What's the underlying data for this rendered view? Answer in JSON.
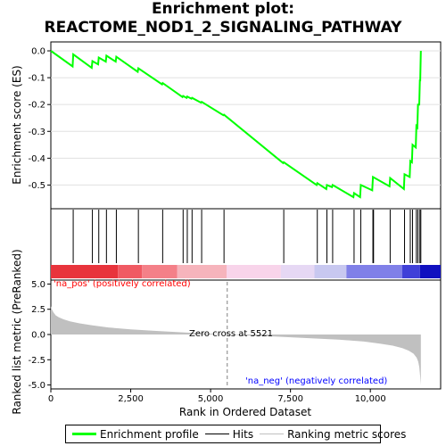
{
  "title_line1": "Enrichment plot:",
  "title_line2": "REACTOME_NOD1_2_SIGNALING_PATHWAY",
  "colors": {
    "es_line": "#00ff00",
    "hits": "#000000",
    "metric_fill": "#c0c0c0",
    "pos_text": "#ff0000",
    "neg_text": "#0000ff",
    "zero_line": "#808080"
  },
  "legend": {
    "es_label": "Enrichment profile",
    "hits_label": "Hits",
    "metric_label": "Ranking metric scores"
  },
  "chart_data": [
    {
      "type": "line",
      "name": "enrichment-profile",
      "ylabel": "Enrichment score (ES)",
      "xlim": [
        0,
        12200
      ],
      "ylim": [
        -0.585,
        0.03
      ],
      "yticks": [
        0.0,
        -0.1,
        -0.2,
        -0.3,
        -0.4,
        -0.5
      ],
      "ytick_labels": [
        "0.0",
        "-0.1",
        "-0.2",
        "-0.3",
        "-0.4",
        "-0.5"
      ],
      "points": [
        [
          0,
          0.0
        ],
        [
          680,
          -0.058
        ],
        [
          700,
          -0.013
        ],
        [
          1280,
          -0.063
        ],
        [
          1300,
          -0.038
        ],
        [
          1480,
          -0.05
        ],
        [
          1500,
          -0.025
        ],
        [
          1720,
          -0.04
        ],
        [
          1740,
          -0.018
        ],
        [
          2030,
          -0.04
        ],
        [
          2050,
          -0.022
        ],
        [
          2720,
          -0.078
        ],
        [
          2740,
          -0.065
        ],
        [
          3480,
          -0.125
        ],
        [
          3500,
          -0.12
        ],
        [
          4120,
          -0.172
        ],
        [
          4140,
          -0.168
        ],
        [
          4250,
          -0.175
        ],
        [
          4270,
          -0.17
        ],
        [
          4400,
          -0.178
        ],
        [
          4420,
          -0.175
        ],
        [
          4700,
          -0.193
        ],
        [
          4720,
          -0.19
        ],
        [
          5400,
          -0.24
        ],
        [
          5420,
          -0.238
        ],
        [
          7270,
          -0.418
        ],
        [
          7290,
          -0.415
        ],
        [
          8320,
          -0.5
        ],
        [
          8340,
          -0.493
        ],
        [
          8620,
          -0.515
        ],
        [
          8640,
          -0.5
        ],
        [
          8800,
          -0.508
        ],
        [
          8820,
          -0.5
        ],
        [
          9470,
          -0.545
        ],
        [
          9490,
          -0.53
        ],
        [
          9680,
          -0.545
        ],
        [
          9700,
          -0.5
        ],
        [
          10060,
          -0.52
        ],
        [
          10080,
          -0.47
        ],
        [
          10600,
          -0.505
        ],
        [
          10620,
          -0.474
        ],
        [
          11050,
          -0.515
        ],
        [
          11070,
          -0.46
        ],
        [
          11230,
          -0.47
        ],
        [
          11250,
          -0.41
        ],
        [
          11300,
          -0.415
        ],
        [
          11320,
          -0.35
        ],
        [
          11420,
          -0.36
        ],
        [
          11440,
          -0.28
        ],
        [
          11470,
          -0.285
        ],
        [
          11490,
          -0.2
        ],
        [
          11530,
          -0.2
        ],
        [
          11550,
          -0.11
        ],
        [
          11560,
          -0.11
        ],
        [
          11580,
          0.0
        ]
      ]
    },
    {
      "type": "hits",
      "name": "hits",
      "x": [
        700,
        1300,
        1500,
        1740,
        2050,
        2740,
        3500,
        4140,
        4270,
        4420,
        4720,
        5420,
        7290,
        8340,
        8640,
        8820,
        9490,
        9700,
        10080,
        10100,
        10620,
        11070,
        11250,
        11320,
        11440,
        11490,
        11550,
        11580
      ],
      "band_colors": [
        "#e8343c",
        "#f05a63",
        "#f48088",
        "#f6b4bc",
        "#f8d4ea",
        "#e6d8f4",
        "#c8c8f0",
        "#8080e8",
        "#4040d8",
        "#1010c0"
      ],
      "band_edges": [
        0,
        2100,
        2850,
        3950,
        5500,
        7200,
        8250,
        9250,
        11000,
        11550
      ]
    },
    {
      "type": "area",
      "name": "ranking-metric",
      "xlabel": "Rank in Ordered Dataset",
      "ylabel": "Ranked list metric (PreRanked)",
      "xlim": [
        0,
        12200
      ],
      "ylim": [
        -5.3,
        5.3
      ],
      "xticks": [
        0,
        2500,
        5000,
        7500,
        10000
      ],
      "xtick_labels": [
        "0",
        "2,500",
        "5,000",
        "7,500",
        "10,000"
      ],
      "yticks": [
        5.0,
        2.5,
        0.0,
        -2.5,
        -5.0
      ],
      "ytick_labels": [
        "5.0",
        "2.5",
        "0.0",
        "-2.5",
        "-5.0"
      ],
      "x": [
        0,
        30,
        80,
        150,
        250,
        400,
        600,
        900,
        1300,
        1800,
        2500,
        3300,
        4200,
        5000,
        5521,
        6000,
        7000,
        8000,
        9000,
        9800,
        10300,
        10700,
        11000,
        11200,
        11350,
        11450,
        11500,
        11530,
        11560,
        11580
      ],
      "values": [
        2.8,
        2.5,
        2.2,
        1.9,
        1.7,
        1.5,
        1.3,
        1.1,
        0.9,
        0.7,
        0.5,
        0.35,
        0.2,
        0.08,
        0.0,
        -0.08,
        -0.2,
        -0.35,
        -0.5,
        -0.7,
        -0.9,
        -1.1,
        -1.35,
        -1.6,
        -1.9,
        -2.3,
        -2.7,
        -3.2,
        -4.2,
        -5.0
      ],
      "zero_cross": 5521,
      "zero_cross_label": "Zero cross at 5521",
      "pos_label": "'na_pos' (positively correlated)",
      "neg_label": "'na_neg' (negatively correlated)"
    }
  ]
}
